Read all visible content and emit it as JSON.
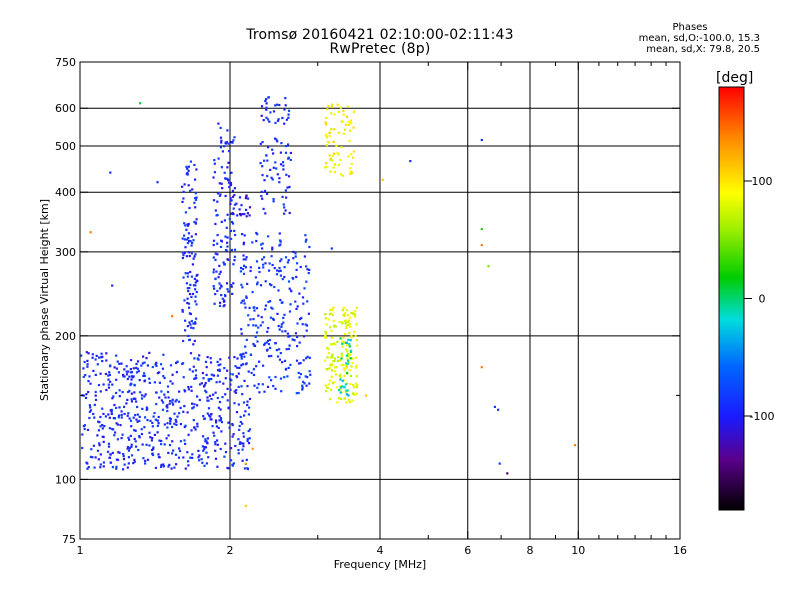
{
  "header": {
    "title_line1": "Tromsø 20160421 02:10:00-02:11:43",
    "title_line2": "RwPretec (8p)"
  },
  "phase_info": {
    "title": "Phases",
    "line1": "mean, sd,O:-100.0, 15.3",
    "line2": "mean, sd,X:  79.8, 20.5"
  },
  "colorbar": {
    "unit": "[deg]",
    "ticks": [
      100,
      0,
      -100
    ],
    "range": [
      -180,
      180
    ],
    "scale": "rainbow, black (-180) to red (+180)"
  },
  "chart_data": {
    "type": "scatter",
    "title": "",
    "xlabel": "Frequency [MHz]",
    "ylabel": "Stationary phase Virtual Height [km]",
    "x_scale": "log",
    "y_scale": "log",
    "xlim": [
      1,
      16
    ],
    "ylim": [
      75,
      750
    ],
    "x_ticks": [
      1,
      2,
      4,
      6,
      8,
      10,
      16
    ],
    "x_minor_ticks": [
      3,
      5,
      7,
      9,
      11,
      12,
      13,
      14,
      15
    ],
    "y_ticks": [
      75,
      100,
      200,
      300,
      400,
      500,
      600,
      750
    ],
    "y_minor_ticks": [
      150
    ],
    "grid": true,
    "clusters": [
      {
        "name": "O-mode low band",
        "phase_deg": -100,
        "x_range": [
          1.0,
          2.2
        ],
        "y_range": [
          105,
          185
        ],
        "count": 650
      },
      {
        "name": "O-mode trace 1.65 MHz",
        "phase_deg": -100,
        "x_range": [
          1.6,
          1.72
        ],
        "y_range": [
          190,
          470
        ],
        "count": 120
      },
      {
        "name": "O-mode trace 1.85-2.0 MHz",
        "phase_deg": -100,
        "x_range": [
          1.85,
          2.05
        ],
        "y_range": [
          230,
          560
        ],
        "count": 130
      },
      {
        "name": "O-mode cusp 2.05 MHz",
        "phase_deg": -110,
        "x_range": [
          2.0,
          2.2
        ],
        "y_range": [
          355,
          395
        ],
        "count": 25
      },
      {
        "name": "O-mode rising trace 2.3-2.65 MHz",
        "phase_deg": -100,
        "x_range": [
          2.3,
          2.65
        ],
        "y_range": [
          360,
          640
        ],
        "count": 90
      },
      {
        "name": "O-mode columns 2.1-2.9 MHz",
        "phase_deg": -95,
        "x_range": [
          2.1,
          2.9
        ],
        "y_range": [
          150,
          330
        ],
        "count": 260
      },
      {
        "name": "X-mode band 3.1-3.6 MHz",
        "phase_deg": 80,
        "x_range": [
          3.1,
          3.6
        ],
        "y_range": [
          145,
          230
        ],
        "count": 170
      },
      {
        "name": "X-mode upper trace",
        "phase_deg": 90,
        "x_range": [
          3.1,
          3.55
        ],
        "y_range": [
          430,
          620
        ],
        "count": 75
      },
      {
        "name": "mixed 3.3-3.5 MHz",
        "phase_deg": -20,
        "x_range": [
          3.3,
          3.5
        ],
        "y_range": [
          150,
          200
        ],
        "count": 30
      }
    ],
    "scattered_points": [
      {
        "x": 1.05,
        "y": 330,
        "phase": 140
      },
      {
        "x": 1.15,
        "y": 440,
        "phase": -100
      },
      {
        "x": 1.16,
        "y": 255,
        "phase": -100
      },
      {
        "x": 1.32,
        "y": 615,
        "phase": -5
      },
      {
        "x": 1.43,
        "y": 420,
        "phase": -100
      },
      {
        "x": 1.53,
        "y": 220,
        "phase": 140
      },
      {
        "x": 2.15,
        "y": 108,
        "phase": 120
      },
      {
        "x": 2.22,
        "y": 116,
        "phase": 130
      },
      {
        "x": 3.2,
        "y": 305,
        "phase": -100
      },
      {
        "x": 4.05,
        "y": 425,
        "phase": 110
      },
      {
        "x": 4.6,
        "y": 465,
        "phase": -100
      },
      {
        "x": 6.4,
        "y": 515,
        "phase": -100
      },
      {
        "x": 6.4,
        "y": 335,
        "phase": 10
      },
      {
        "x": 6.4,
        "y": 310,
        "phase": 140
      },
      {
        "x": 6.6,
        "y": 280,
        "phase": 40
      },
      {
        "x": 6.4,
        "y": 172,
        "phase": 140
      },
      {
        "x": 6.8,
        "y": 142,
        "phase": -90
      },
      {
        "x": 6.9,
        "y": 140,
        "phase": -90
      },
      {
        "x": 6.95,
        "y": 108,
        "phase": -90
      },
      {
        "x": 7.2,
        "y": 103,
        "phase": -150
      },
      {
        "x": 9.85,
        "y": 118,
        "phase": 140
      },
      {
        "x": 2.15,
        "y": 88,
        "phase": 110
      },
      {
        "x": 3.75,
        "y": 150,
        "phase": 110
      }
    ]
  }
}
